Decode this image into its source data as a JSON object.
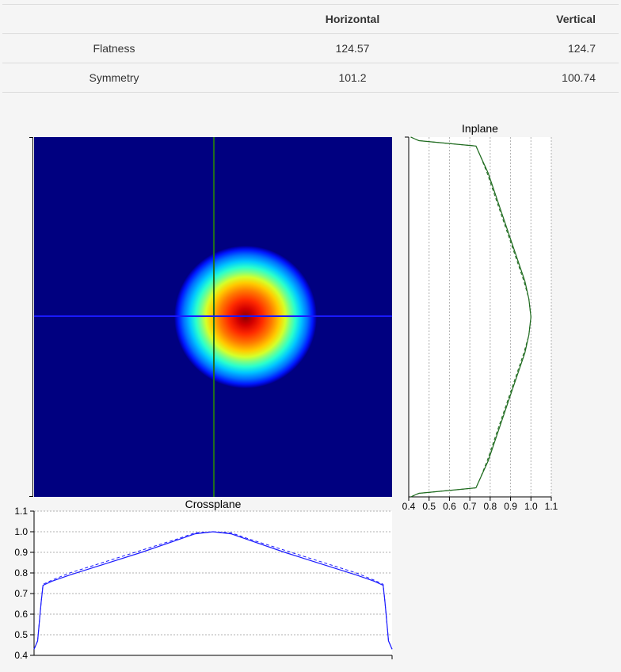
{
  "metrics_table": {
    "headers": [
      "",
      "Horizontal",
      "Vertical"
    ],
    "rows": [
      {
        "label": "Flatness",
        "horizontal": "124.57",
        "vertical": "124.7"
      },
      {
        "label": "Symmetry",
        "horizontal": "101.2",
        "vertical": "100.74"
      }
    ]
  },
  "colors": {
    "inplane": "#1f6b1f",
    "crossplane": "#1a1aff",
    "heatmap_background": "#000080"
  },
  "chart_data": [
    {
      "type": "heatmap",
      "colormap": "jet",
      "shape": "centered circular beam",
      "crosshair_vertical_color": "#1f6b1f",
      "crosshair_horizontal_color": "#1a1aff"
    },
    {
      "type": "line",
      "title": "Inplane",
      "orientation": "vertical",
      "xlim": [
        0.4,
        1.1
      ],
      "ticks": [
        "0.4",
        "0.5",
        "0.6",
        "0.7",
        "0.8",
        "0.9",
        "1.0",
        "1.1"
      ],
      "position": [
        0,
        0.01,
        0.02,
        0.025,
        0.05,
        0.1,
        0.2,
        0.3,
        0.4,
        0.45,
        0.5,
        0.55,
        0.6,
        0.7,
        0.8,
        0.9,
        0.95,
        0.975,
        0.98,
        0.99,
        1
      ],
      "series": [
        {
          "values": [
            0.41,
            0.45,
            0.64,
            0.73,
            0.75,
            0.79,
            0.85,
            0.91,
            0.97,
            0.99,
            1.0,
            0.99,
            0.97,
            0.91,
            0.85,
            0.79,
            0.75,
            0.73,
            0.64,
            0.45,
            0.41
          ]
        },
        {
          "dashed": true,
          "values": [
            0.41,
            0.45,
            0.64,
            0.73,
            0.75,
            0.785,
            0.845,
            0.905,
            0.965,
            0.99,
            1.0,
            0.99,
            0.965,
            0.905,
            0.845,
            0.785,
            0.75,
            0.73,
            0.64,
            0.45,
            0.41
          ]
        }
      ]
    },
    {
      "type": "line",
      "title": "Crossplane",
      "ylim": [
        0.4,
        1.1
      ],
      "ticks": [
        "0.4",
        "0.5",
        "0.6",
        "0.7",
        "0.8",
        "0.9",
        "1.0",
        "1.1"
      ],
      "position": [
        0,
        0.01,
        0.02,
        0.025,
        0.05,
        0.1,
        0.2,
        0.3,
        0.4,
        0.45,
        0.5,
        0.55,
        0.6,
        0.7,
        0.8,
        0.9,
        0.95,
        0.975,
        0.98,
        0.99,
        1
      ],
      "series": [
        {
          "values": [
            0.43,
            0.47,
            0.66,
            0.74,
            0.76,
            0.79,
            0.845,
            0.9,
            0.96,
            0.99,
            1.0,
            0.99,
            0.96,
            0.9,
            0.845,
            0.79,
            0.76,
            0.74,
            0.66,
            0.47,
            0.43
          ]
        },
        {
          "dashed": true,
          "values": [
            0.43,
            0.47,
            0.66,
            0.745,
            0.765,
            0.8,
            0.855,
            0.91,
            0.965,
            0.995,
            1.0,
            0.995,
            0.965,
            0.91,
            0.855,
            0.8,
            0.765,
            0.745,
            0.66,
            0.47,
            0.43
          ]
        }
      ]
    }
  ]
}
